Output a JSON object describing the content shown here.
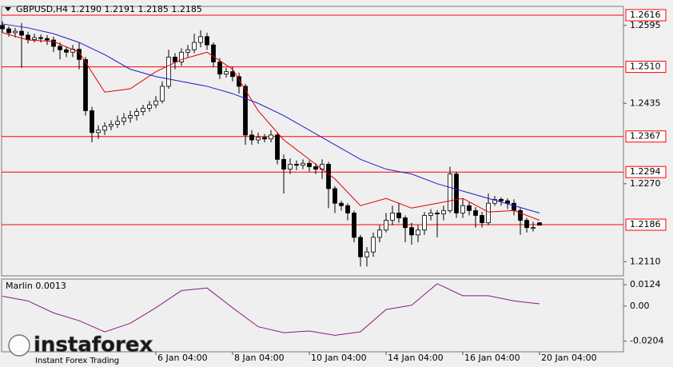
{
  "chart_data": [
    {
      "type": "candlestick",
      "title": "GBPUSD,H4  1.2190 1.2191 1.2185 1.2185",
      "up_color": "#ffffff",
      "down_color": "#000000",
      "open": [
        1.2595,
        1.2588,
        1.258,
        1.2583,
        1.2575,
        1.2566,
        1.257,
        1.2568,
        1.2565,
        1.2552,
        1.2545,
        1.254,
        1.2546,
        1.2525,
        1.242,
        1.2375,
        1.238,
        1.2388,
        1.2392,
        1.2398,
        1.2405,
        1.241,
        1.2418,
        1.2425,
        1.2432,
        1.244,
        1.247,
        1.253,
        1.252,
        1.254,
        1.2545,
        1.256,
        1.2572,
        1.2555,
        1.252,
        1.2495,
        1.25,
        1.249,
        1.247,
        1.237,
        1.236,
        1.2365,
        1.2362,
        1.237,
        1.232,
        1.23,
        1.231,
        1.2308,
        1.2312,
        1.2305,
        1.23,
        1.231,
        1.226,
        1.223,
        1.2225,
        1.221,
        1.216,
        1.212,
        1.213,
        1.216,
        1.2175,
        1.2195,
        1.221,
        1.22,
        1.218,
        1.2165,
        1.2175,
        1.2205,
        1.221,
        1.2208,
        1.2215,
        1.229,
        1.221,
        1.2225,
        1.2215,
        1.2205,
        1.219,
        1.223,
        1.2238,
        1.2235,
        1.223,
        1.2215,
        1.2195,
        1.218,
        1.219
      ],
      "high": [
        1.2603,
        1.2593,
        1.259,
        1.26,
        1.2582,
        1.2578,
        1.2576,
        1.2575,
        1.2572,
        1.256,
        1.2552,
        1.2555,
        1.256,
        1.253,
        1.2428,
        1.239,
        1.2396,
        1.24,
        1.241,
        1.2415,
        1.242,
        1.2425,
        1.2432,
        1.244,
        1.245,
        1.248,
        1.2545,
        1.2538,
        1.2548,
        1.2555,
        1.2578,
        1.2585,
        1.258,
        1.256,
        1.2528,
        1.2508,
        1.251,
        1.2498,
        1.2475,
        1.238,
        1.2375,
        1.2372,
        1.238,
        1.2375,
        1.233,
        1.2322,
        1.2318,
        1.232,
        1.2318,
        1.2312,
        1.232,
        1.2315,
        1.2265,
        1.2235,
        1.223,
        1.2215,
        1.2165,
        1.214,
        1.217,
        1.2185,
        1.221,
        1.2225,
        1.223,
        1.2205,
        1.219,
        1.2185,
        1.2212,
        1.2218,
        1.2216,
        1.2225,
        1.2305,
        1.2295,
        1.224,
        1.2232,
        1.2222,
        1.2212,
        1.225,
        1.2245,
        1.2242,
        1.224,
        1.2238,
        1.222,
        1.22,
        1.2192,
        1.2191
      ],
      "low": [
        1.258,
        1.2572,
        1.257,
        1.2508,
        1.2558,
        1.256,
        1.256,
        1.2555,
        1.254,
        1.2525,
        1.253,
        1.253,
        1.2505,
        1.241,
        1.2355,
        1.2362,
        1.237,
        1.238,
        1.2385,
        1.239,
        1.2395,
        1.24,
        1.241,
        1.2418,
        1.2425,
        1.2435,
        1.2465,
        1.2505,
        1.2512,
        1.253,
        1.2538,
        1.255,
        1.2545,
        1.251,
        1.2485,
        1.2488,
        1.248,
        1.2455,
        1.235,
        1.235,
        1.2352,
        1.2355,
        1.2355,
        1.231,
        1.225,
        1.229,
        1.2298,
        1.23,
        1.2295,
        1.229,
        1.228,
        1.222,
        1.221,
        1.2215,
        1.2195,
        1.215,
        1.21,
        1.21,
        1.212,
        1.215,
        1.217,
        1.2185,
        1.219,
        1.215,
        1.2145,
        1.215,
        1.2165,
        1.2195,
        1.216,
        1.2195,
        1.221,
        1.22,
        1.22,
        1.2205,
        1.218,
        1.218,
        1.2185,
        1.2225,
        1.2225,
        1.2218,
        1.2205,
        1.2165,
        1.217,
        1.2172,
        1.2185
      ],
      "close": [
        1.2588,
        1.258,
        1.2583,
        1.2575,
        1.2566,
        1.257,
        1.2568,
        1.2565,
        1.2552,
        1.2545,
        1.254,
        1.2546,
        1.2525,
        1.242,
        1.2375,
        1.238,
        1.2388,
        1.2392,
        1.2398,
        1.2405,
        1.241,
        1.2418,
        1.2425,
        1.2432,
        1.244,
        1.247,
        1.253,
        1.252,
        1.254,
        1.2545,
        1.256,
        1.2572,
        1.2555,
        1.252,
        1.2495,
        1.25,
        1.249,
        1.247,
        1.237,
        1.236,
        1.2365,
        1.2362,
        1.237,
        1.232,
        1.23,
        1.231,
        1.2308,
        1.2312,
        1.2305,
        1.23,
        1.231,
        1.226,
        1.223,
        1.2225,
        1.221,
        1.216,
        1.212,
        1.213,
        1.216,
        1.2175,
        1.2195,
        1.221,
        1.22,
        1.218,
        1.2165,
        1.2175,
        1.2205,
        1.221,
        1.2208,
        1.2215,
        1.229,
        1.221,
        1.2225,
        1.2215,
        1.2205,
        1.219,
        1.223,
        1.2238,
        1.2235,
        1.223,
        1.2215,
        1.2195,
        1.218,
        1.218,
        1.2185
      ],
      "series": [
        {
          "color": "#e00000",
          "x": [
            0,
            4,
            8,
            12,
            16,
            20,
            24,
            28,
            32,
            36,
            40,
            44,
            48,
            52,
            56,
            60,
            64,
            68,
            72,
            76,
            80,
            84
          ],
          "values": [
            1.258,
            1.2565,
            1.2562,
            1.254,
            1.2458,
            1.2465,
            1.25,
            1.2525,
            1.254,
            1.2505,
            1.242,
            1.236,
            1.232,
            1.228,
            1.2225,
            1.224,
            1.222,
            1.223,
            1.224,
            1.2212,
            1.2215,
            1.2195
          ]
        },
        {
          "color": "#1c1cd0",
          "x": [
            0,
            4,
            8,
            12,
            16,
            20,
            24,
            28,
            32,
            36,
            40,
            44,
            48,
            52,
            56,
            60,
            64,
            68,
            72,
            76,
            80,
            84
          ],
          "values": [
            1.2598,
            1.259,
            1.2578,
            1.256,
            1.2535,
            1.2505,
            1.249,
            1.248,
            1.247,
            1.2455,
            1.2435,
            1.241,
            1.238,
            1.235,
            1.232,
            1.23,
            1.229,
            1.227,
            1.2255,
            1.224,
            1.2225,
            1.221
          ]
        }
      ],
      "levels": [
        1.2616,
        {
          "value": 1.251,
          "label": "1.2510"
        },
        1.2367,
        1.2294,
        1.2186
      ],
      "level_color": "#ff0000",
      "xlim": [
        -0.125,
        97.125
      ],
      "ylim": [
        1.2081,
        1.2634
      ],
      "yticks": [
        1.2595,
        1.2435,
        {
          "value": 1.227,
          "label": "1.2270"
        },
        {
          "value": 1.211,
          "label": "1.2110"
        }
      ],
      "xticks": [
        {
          "value": 24,
          "label": "6 Jan 04:00"
        },
        {
          "value": 36,
          "label": "8 Jan 04:00"
        },
        {
          "value": 48,
          "label": "10 Jan 04:00"
        },
        {
          "value": 60,
          "label": "14 Jan 04:00"
        },
        {
          "value": 72,
          "label": "16 Jan 04:00"
        },
        {
          "value": 84,
          "label": "20 Jan 04:00"
        }
      ],
      "grid": false
    },
    {
      "type": "line",
      "title": "Marlin 0.0013",
      "series": [
        {
          "color": "#8b1a7a",
          "x": [
            0,
            4,
            8,
            12,
            16,
            20,
            24,
            28,
            32,
            36,
            40,
            44,
            48,
            52,
            56,
            60,
            64,
            68,
            72,
            76,
            80,
            84
          ],
          "values": [
            0.0057,
            0.003,
            -0.004,
            -0.0085,
            -0.015,
            -0.01,
            -0.001,
            0.009,
            0.0105,
            -0.001,
            -0.012,
            -0.0155,
            -0.0145,
            -0.017,
            -0.015,
            -0.002,
            0.0005,
            0.013,
            0.006,
            0.006,
            0.003,
            0.0013
          ]
        }
      ],
      "xlim": [
        -0.125,
        97.125
      ],
      "ylim": [
        -0.0266,
        0.0157
      ],
      "yticks": [
        0.0124,
        {
          "value": 0,
          "label": "0.00"
        },
        -0.0204
      ],
      "grid": false
    }
  ],
  "watermark": {
    "brand": "instaforex",
    "tagline": "Instant Forex Trading"
  }
}
